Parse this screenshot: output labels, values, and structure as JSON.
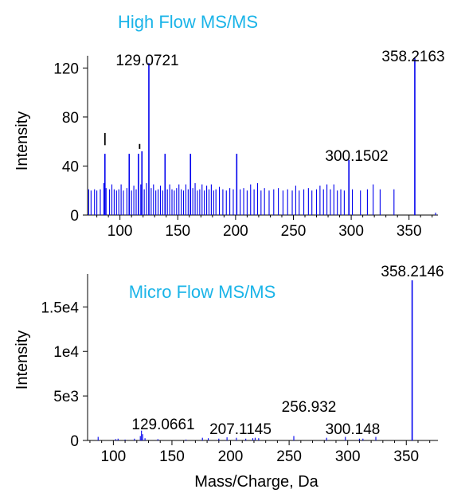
{
  "chart_data": [
    {
      "type": "bar",
      "title": "High Flow MS/MS",
      "title_color": "#1ab4e8",
      "bar_color": "#0000ee",
      "xlabel": "",
      "ylabel": "Intensity",
      "xlim": [
        72,
        375
      ],
      "ylim": [
        0,
        130
      ],
      "xticks": [
        100,
        150,
        200,
        250,
        300,
        350
      ],
      "yticks": [
        0,
        40,
        80,
        120
      ],
      "annotations": [
        {
          "label": "129.0721",
          "x": 125,
          "y": 124
        },
        {
          "label": "358.2163",
          "x": 355,
          "y": 128
        },
        {
          "label": "300.1502",
          "x": 298,
          "y": 45
        }
      ],
      "black_marks": [
        {
          "x": 87,
          "y0": 57,
          "y1": 67
        },
        {
          "x": 117,
          "y0": 54,
          "y1": 58
        }
      ],
      "peaks": [
        {
          "x": 73,
          "y": 21
        },
        {
          "x": 75,
          "y": 20
        },
        {
          "x": 78,
          "y": 21
        },
        {
          "x": 80,
          "y": 20
        },
        {
          "x": 83,
          "y": 21
        },
        {
          "x": 86,
          "y": 26
        },
        {
          "x": 87,
          "y": 50
        },
        {
          "x": 88,
          "y": 22
        },
        {
          "x": 91,
          "y": 21
        },
        {
          "x": 93,
          "y": 25
        },
        {
          "x": 95,
          "y": 21
        },
        {
          "x": 97,
          "y": 20
        },
        {
          "x": 99,
          "y": 21
        },
        {
          "x": 101,
          "y": 25
        },
        {
          "x": 103,
          "y": 20
        },
        {
          "x": 106,
          "y": 22
        },
        {
          "x": 108,
          "y": 50
        },
        {
          "x": 110,
          "y": 20
        },
        {
          "x": 112,
          "y": 24
        },
        {
          "x": 114,
          "y": 21
        },
        {
          "x": 116,
          "y": 50
        },
        {
          "x": 118,
          "y": 25
        },
        {
          "x": 119,
          "y": 52
        },
        {
          "x": 121,
          "y": 21
        },
        {
          "x": 123,
          "y": 26
        },
        {
          "x": 125,
          "y": 124
        },
        {
          "x": 127,
          "y": 22
        },
        {
          "x": 129,
          "y": 25
        },
        {
          "x": 131,
          "y": 20
        },
        {
          "x": 133,
          "y": 21
        },
        {
          "x": 135,
          "y": 24
        },
        {
          "x": 137,
          "y": 20
        },
        {
          "x": 139,
          "y": 50
        },
        {
          "x": 141,
          "y": 21
        },
        {
          "x": 143,
          "y": 25
        },
        {
          "x": 145,
          "y": 21
        },
        {
          "x": 147,
          "y": 20
        },
        {
          "x": 149,
          "y": 22
        },
        {
          "x": 151,
          "y": 25
        },
        {
          "x": 153,
          "y": 21
        },
        {
          "x": 155,
          "y": 20
        },
        {
          "x": 157,
          "y": 25
        },
        {
          "x": 159,
          "y": 21
        },
        {
          "x": 161,
          "y": 50
        },
        {
          "x": 163,
          "y": 22
        },
        {
          "x": 165,
          "y": 26
        },
        {
          "x": 167,
          "y": 20
        },
        {
          "x": 169,
          "y": 21
        },
        {
          "x": 171,
          "y": 25
        },
        {
          "x": 173,
          "y": 20
        },
        {
          "x": 175,
          "y": 24
        },
        {
          "x": 177,
          "y": 21
        },
        {
          "x": 179,
          "y": 25
        },
        {
          "x": 181,
          "y": 20
        },
        {
          "x": 183,
          "y": 21
        },
        {
          "x": 186,
          "y": 23
        },
        {
          "x": 189,
          "y": 21
        },
        {
          "x": 192,
          "y": 20
        },
        {
          "x": 195,
          "y": 22
        },
        {
          "x": 198,
          "y": 21
        },
        {
          "x": 201,
          "y": 50
        },
        {
          "x": 204,
          "y": 21
        },
        {
          "x": 207,
          "y": 22
        },
        {
          "x": 210,
          "y": 20
        },
        {
          "x": 213,
          "y": 25
        },
        {
          "x": 216,
          "y": 21
        },
        {
          "x": 219,
          "y": 26
        },
        {
          "x": 222,
          "y": 20
        },
        {
          "x": 225,
          "y": 22
        },
        {
          "x": 229,
          "y": 20
        },
        {
          "x": 233,
          "y": 21
        },
        {
          "x": 237,
          "y": 22
        },
        {
          "x": 241,
          "y": 20
        },
        {
          "x": 245,
          "y": 21
        },
        {
          "x": 249,
          "y": 20
        },
        {
          "x": 252,
          "y": 24
        },
        {
          "x": 255,
          "y": 20
        },
        {
          "x": 259,
          "y": 21
        },
        {
          "x": 263,
          "y": 22
        },
        {
          "x": 266,
          "y": 20
        },
        {
          "x": 270,
          "y": 21
        },
        {
          "x": 273,
          "y": 24
        },
        {
          "x": 276,
          "y": 21
        },
        {
          "x": 279,
          "y": 25
        },
        {
          "x": 282,
          "y": 21
        },
        {
          "x": 285,
          "y": 25
        },
        {
          "x": 288,
          "y": 20
        },
        {
          "x": 291,
          "y": 21
        },
        {
          "x": 294,
          "y": 20
        },
        {
          "x": 298,
          "y": 45
        },
        {
          "x": 301,
          "y": 21
        },
        {
          "x": 308,
          "y": 20
        },
        {
          "x": 314,
          "y": 21
        },
        {
          "x": 319,
          "y": 25
        },
        {
          "x": 325,
          "y": 21
        },
        {
          "x": 337,
          "y": 21
        },
        {
          "x": 355,
          "y": 128
        },
        {
          "x": 373,
          "y": 2
        }
      ]
    },
    {
      "type": "bar",
      "title": "Micro Flow MS/MS",
      "title_color": "#1ab4e8",
      "bar_color": "#0000ee",
      "xlabel": "Mass/Charge, Da",
      "ylabel": "Intensity",
      "xlim": [
        78,
        377
      ],
      "ylim": [
        0,
        18700
      ],
      "xticks": [
        100,
        150,
        200,
        250,
        300,
        350
      ],
      "yticks": [
        0,
        5000,
        10000,
        15000
      ],
      "ytick_labels": [
        "0",
        "5e3",
        "1e4",
        "1.5e4"
      ],
      "annotations": [
        {
          "label": "358.2146",
          "x": 355,
          "y": 18000
        },
        {
          "label": "129.0661",
          "x": 125,
          "y": 900
        },
        {
          "label": "207.1145",
          "x": 205,
          "y": 300
        },
        {
          "label": "256.932",
          "x": 254,
          "y": 500
        },
        {
          "label": "300.148",
          "x": 298,
          "y": 400
        }
      ],
      "peaks": [
        {
          "x": 87,
          "y": 400
        },
        {
          "x": 102,
          "y": 150
        },
        {
          "x": 104,
          "y": 200
        },
        {
          "x": 110,
          "y": 100
        },
        {
          "x": 118,
          "y": 200
        },
        {
          "x": 123,
          "y": 500
        },
        {
          "x": 124,
          "y": 1100
        },
        {
          "x": 125,
          "y": 700
        },
        {
          "x": 127,
          "y": 250
        },
        {
          "x": 138,
          "y": 150
        },
        {
          "x": 162,
          "y": 100
        },
        {
          "x": 176,
          "y": 300
        },
        {
          "x": 181,
          "y": 250
        },
        {
          "x": 190,
          "y": 200
        },
        {
          "x": 197,
          "y": 350
        },
        {
          "x": 205,
          "y": 300
        },
        {
          "x": 213,
          "y": 200
        },
        {
          "x": 219,
          "y": 250
        },
        {
          "x": 221,
          "y": 300
        },
        {
          "x": 224,
          "y": 250
        },
        {
          "x": 254,
          "y": 500
        },
        {
          "x": 282,
          "y": 300
        },
        {
          "x": 298,
          "y": 400
        },
        {
          "x": 310,
          "y": 200
        },
        {
          "x": 313,
          "y": 200
        },
        {
          "x": 324,
          "y": 400
        },
        {
          "x": 355,
          "y": 18000
        }
      ]
    }
  ]
}
